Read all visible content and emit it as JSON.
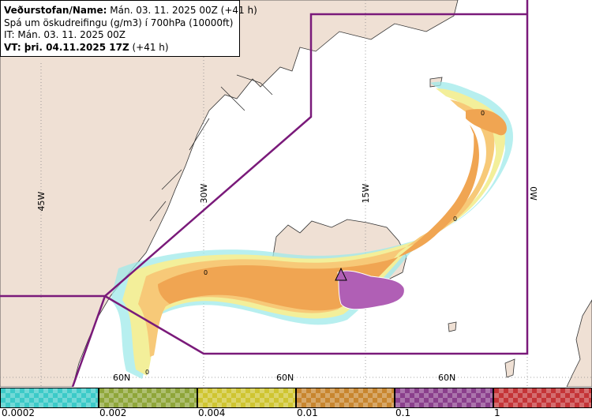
{
  "info": {
    "line1_label": "Veðurstofan/Name:",
    "line1_value": " Mán. 03. 11. 2025 00Z (+41 h)",
    "line2": "Spá um öskudreifingu (g/m3) í 700hPa (10000ft)",
    "line3": "IT: Mán. 03. 11. 2025 00Z",
    "line4_label": "VT: þri. 04.11.2025 17Z",
    "line4_value": " (+41 h)"
  },
  "map": {
    "meridian_labels": [
      "45W",
      "30W",
      "15W",
      "0W"
    ],
    "parallel_labels": [
      "60N",
      "60N",
      "60N"
    ],
    "contour_labels": [
      "0",
      "0",
      "0",
      "0"
    ],
    "colors": {
      "land": "#efe0d4",
      "ocean": "#ffffff",
      "region_border": "#7a1a7a",
      "low": "#f7c978",
      "mid": "#f0a552",
      "high": "#b05fb5",
      "trace_yellow": "#f3ef9a",
      "trace_cyan": "#9fe9e9"
    }
  },
  "scale": {
    "colors": [
      "#3ccac8",
      "#8fa63a",
      "#cfc531",
      "#c8862f",
      "#8a3f8c",
      "#c43437"
    ],
    "tick_labels": [
      "0.0002",
      "0.002",
      "0.004",
      "0.01",
      "0.1",
      "1"
    ]
  }
}
